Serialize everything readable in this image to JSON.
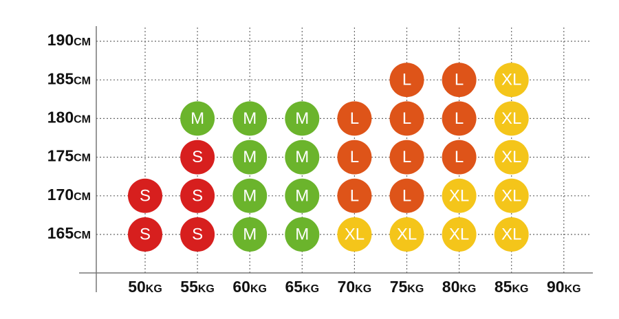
{
  "y_labels": [
    "190cm",
    "185cm",
    "180cm",
    "175cm",
    "170cm",
    "165cm"
  ],
  "x_labels": [
    "50kg",
    "55kg",
    "60kg",
    "65kg",
    "70kg",
    "75kg",
    "80kg",
    "85kg",
    "90kg"
  ],
  "cells": [
    [
      null,
      null,
      null,
      null,
      null,
      null,
      null,
      null,
      null
    ],
    [
      null,
      null,
      null,
      null,
      null,
      "L",
      "L",
      "XL",
      null
    ],
    [
      null,
      "M",
      "M",
      "M",
      "L",
      "L",
      "L",
      "XL",
      null
    ],
    [
      null,
      "S",
      "M",
      "M",
      "L",
      "L",
      "L",
      "XL",
      null
    ],
    [
      "S",
      "S",
      "M",
      "M",
      "L",
      "L",
      "XL",
      "XL",
      null
    ],
    [
      "S",
      "S",
      "M",
      "M",
      "XL",
      "XL",
      "XL",
      "XL",
      null
    ]
  ],
  "colors": {
    "S": "#d71f1e",
    "M": "#6bb42c",
    "L": "#de5419",
    "XL": "#f4c51a"
  }
}
